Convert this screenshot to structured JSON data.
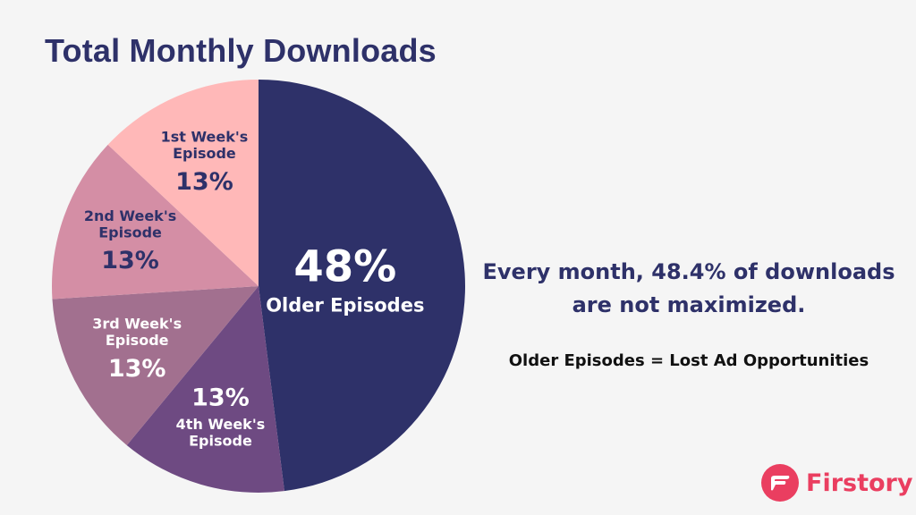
{
  "chart_data": {
    "type": "pie",
    "title": "Total Monthly Downloads",
    "slices": [
      {
        "label": "Older Episodes",
        "value": 48,
        "value_label": "48%",
        "color": "#2e3169",
        "text_color": "#ffffff"
      },
      {
        "label": "4th Week's Episode",
        "value": 13,
        "value_label": "13%",
        "color": "#6e4a82",
        "text_color": "#ffffff"
      },
      {
        "label": "3rd Week's Episode",
        "value": 13,
        "value_label": "13%",
        "color": "#a2708f",
        "text_color": "#ffffff"
      },
      {
        "label": "2nd Week's Episode",
        "value": 13,
        "value_label": "13%",
        "color": "#d48ea5",
        "text_color": "#2e3169"
      },
      {
        "label": "1st Week's Episode",
        "value": 13,
        "value_label": "13%",
        "color": "#ffb8b8",
        "text_color": "#2e3169"
      }
    ]
  },
  "annotations": {
    "message": "Every month, 48.4% of downloads are not maximized.",
    "note": "Older Episodes = Lost Ad Opportunities"
  },
  "brand": {
    "name": "Firstory",
    "color": "#ea3e60",
    "icon": "firstory-logo-icon"
  }
}
